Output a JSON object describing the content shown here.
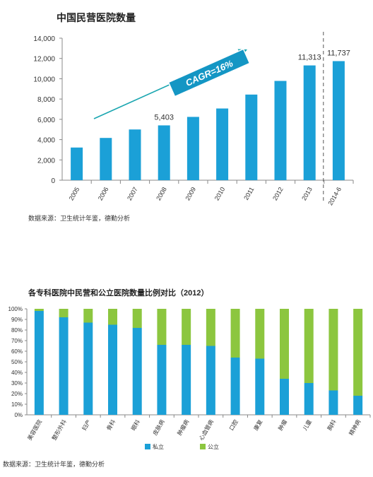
{
  "chart_data": [
    {
      "type": "bar",
      "title": "中国民营医院数量",
      "categories": [
        "2005",
        "2006",
        "2007",
        "2008",
        "2009",
        "2010",
        "2011",
        "2012",
        "2013",
        "2014-6"
      ],
      "values": [
        3220,
        4166,
        5000,
        5403,
        6240,
        7068,
        8440,
        9786,
        11313,
        11737
      ],
      "data_labels": [
        {
          "index": 3,
          "text": "5,403"
        },
        {
          "index": 8,
          "text": "11,313"
        },
        {
          "index": 9,
          "text": "11,737"
        }
      ],
      "ylim": [
        0,
        14000
      ],
      "yticks": [
        "0",
        "2,000",
        "4,000",
        "6,000",
        "8,000",
        "10,000",
        "12,000",
        "14,000"
      ],
      "annotation": "CAGR=16%",
      "source": "数据来源：卫生统计年鉴，德勤分析",
      "bar_color": "#1ba0d7",
      "arrow_color": "#1aa6b0"
    },
    {
      "type": "bar",
      "stacked": true,
      "title": "各专科医院中民营和公立医院数量比例对比（2012）",
      "categories": [
        "美容医院",
        "整形外科",
        "妇产",
        "骨科",
        "眼科",
        "皮肤病",
        "肿瘤病",
        "心血管病",
        "口腔",
        "康复",
        "肿瘤",
        "儿童",
        "胸科",
        "精神病"
      ],
      "series": [
        {
          "name": "私立",
          "color": "#1ba0d7",
          "values": [
            98,
            92,
            87,
            85,
            82,
            66,
            66,
            65,
            54,
            53,
            34,
            30,
            23,
            18
          ]
        },
        {
          "name": "公立",
          "color": "#8cc63f",
          "values": [
            2,
            8,
            13,
            15,
            18,
            34,
            34,
            35,
            46,
            47,
            66,
            70,
            77,
            82
          ]
        }
      ],
      "ylim": [
        0,
        100
      ],
      "yticks": [
        "0%",
        "10%",
        "20%",
        "30%",
        "40%",
        "50%",
        "60%",
        "70%",
        "80%",
        "90%",
        "100%"
      ],
      "legend_position": "bottom",
      "source": "数据来源：卫生统计年鉴，德勤分析"
    }
  ]
}
